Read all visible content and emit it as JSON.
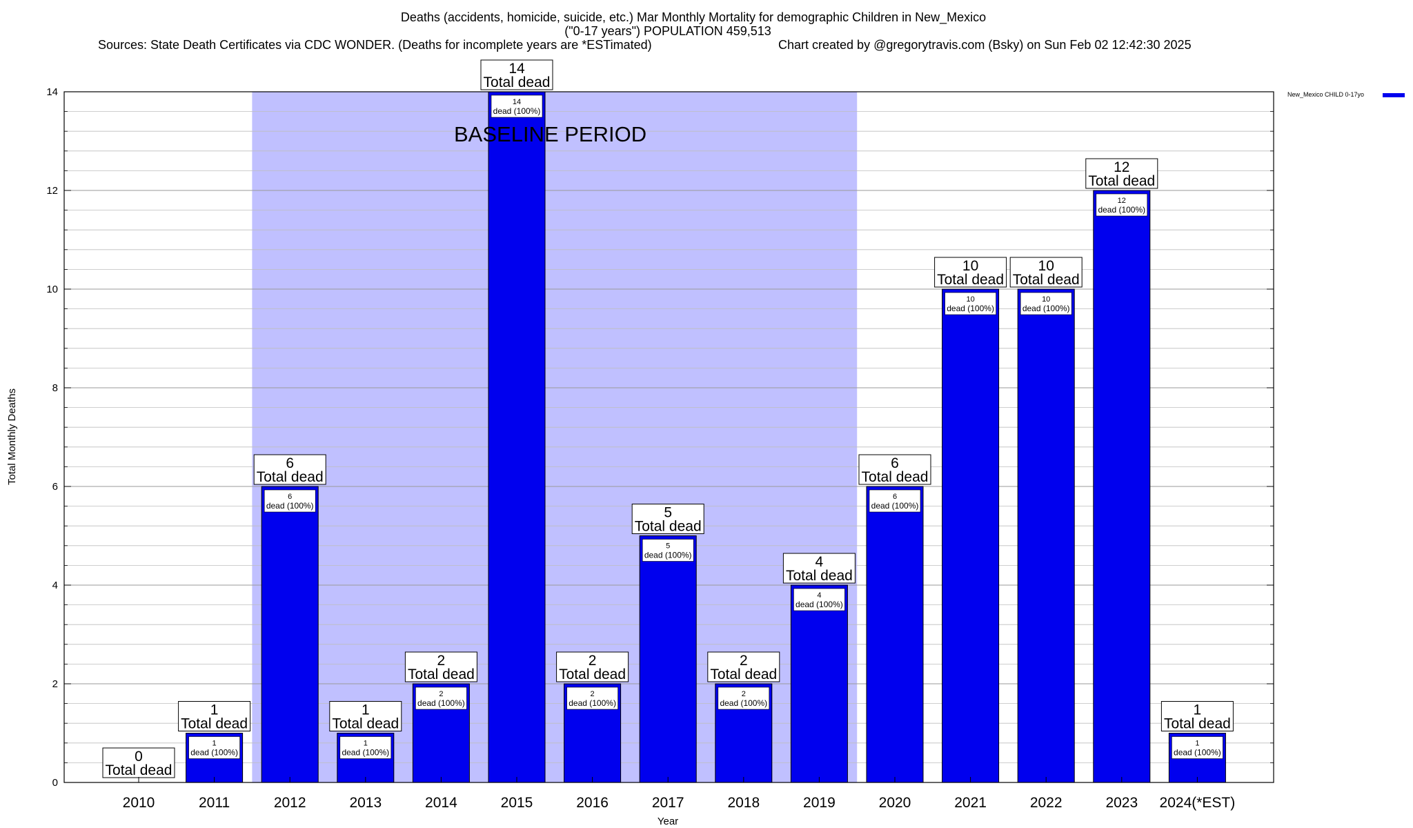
{
  "chart_data": {
    "type": "bar",
    "title": "Deaths (accidents, homicide, suicide, etc.) Mar Monthly Mortality for demographic Children in New_Mexico",
    "subtitle": "(\"0-17 years\") POPULATION 459,513",
    "source_text": "Sources: State Death Certificates via CDC WONDER. (Deaths for incomplete years are *ESTimated)",
    "credit_text": "Chart created by @gregorytravis.com (Bsky) on Sun Feb 02 12:42:30 2025",
    "xlabel": "Year",
    "ylabel": "Total Monthly Deaths",
    "ylim": [
      0,
      14
    ],
    "yticks": [
      "0",
      "2",
      "4",
      "6",
      "8",
      "10",
      "12",
      "14"
    ],
    "grid": true,
    "legend_position": "top-right",
    "baseline": {
      "label": "BASELINE PERIOD",
      "from": "2012",
      "to": "2019",
      "color": "#c0c0ff"
    },
    "categories": [
      "2010",
      "2011",
      "2012",
      "2013",
      "2014",
      "2015",
      "2016",
      "2017",
      "2018",
      "2019",
      "2020",
      "2021",
      "2022",
      "2023",
      "2024(*EST)"
    ],
    "series": [
      {
        "name": "New_Mexico CHILD 0-17yo",
        "color": "#0000ee",
        "values": [
          0,
          1,
          6,
          1,
          2,
          14,
          2,
          5,
          2,
          4,
          6,
          10,
          10,
          12,
          1
        ],
        "inner_labels": [
          "",
          "dead (100%)",
          "dead (100%)",
          "dead (100%)",
          "dead (100%)",
          "dead (100%)",
          "dead (100%)",
          "dead (100%)",
          "dead (100%)",
          "dead (100%)",
          "dead (100%)",
          "dead (100%)",
          "dead (100%)",
          "dead (100%)",
          "dead (100%)"
        ]
      }
    ],
    "total_label": "Total dead"
  }
}
